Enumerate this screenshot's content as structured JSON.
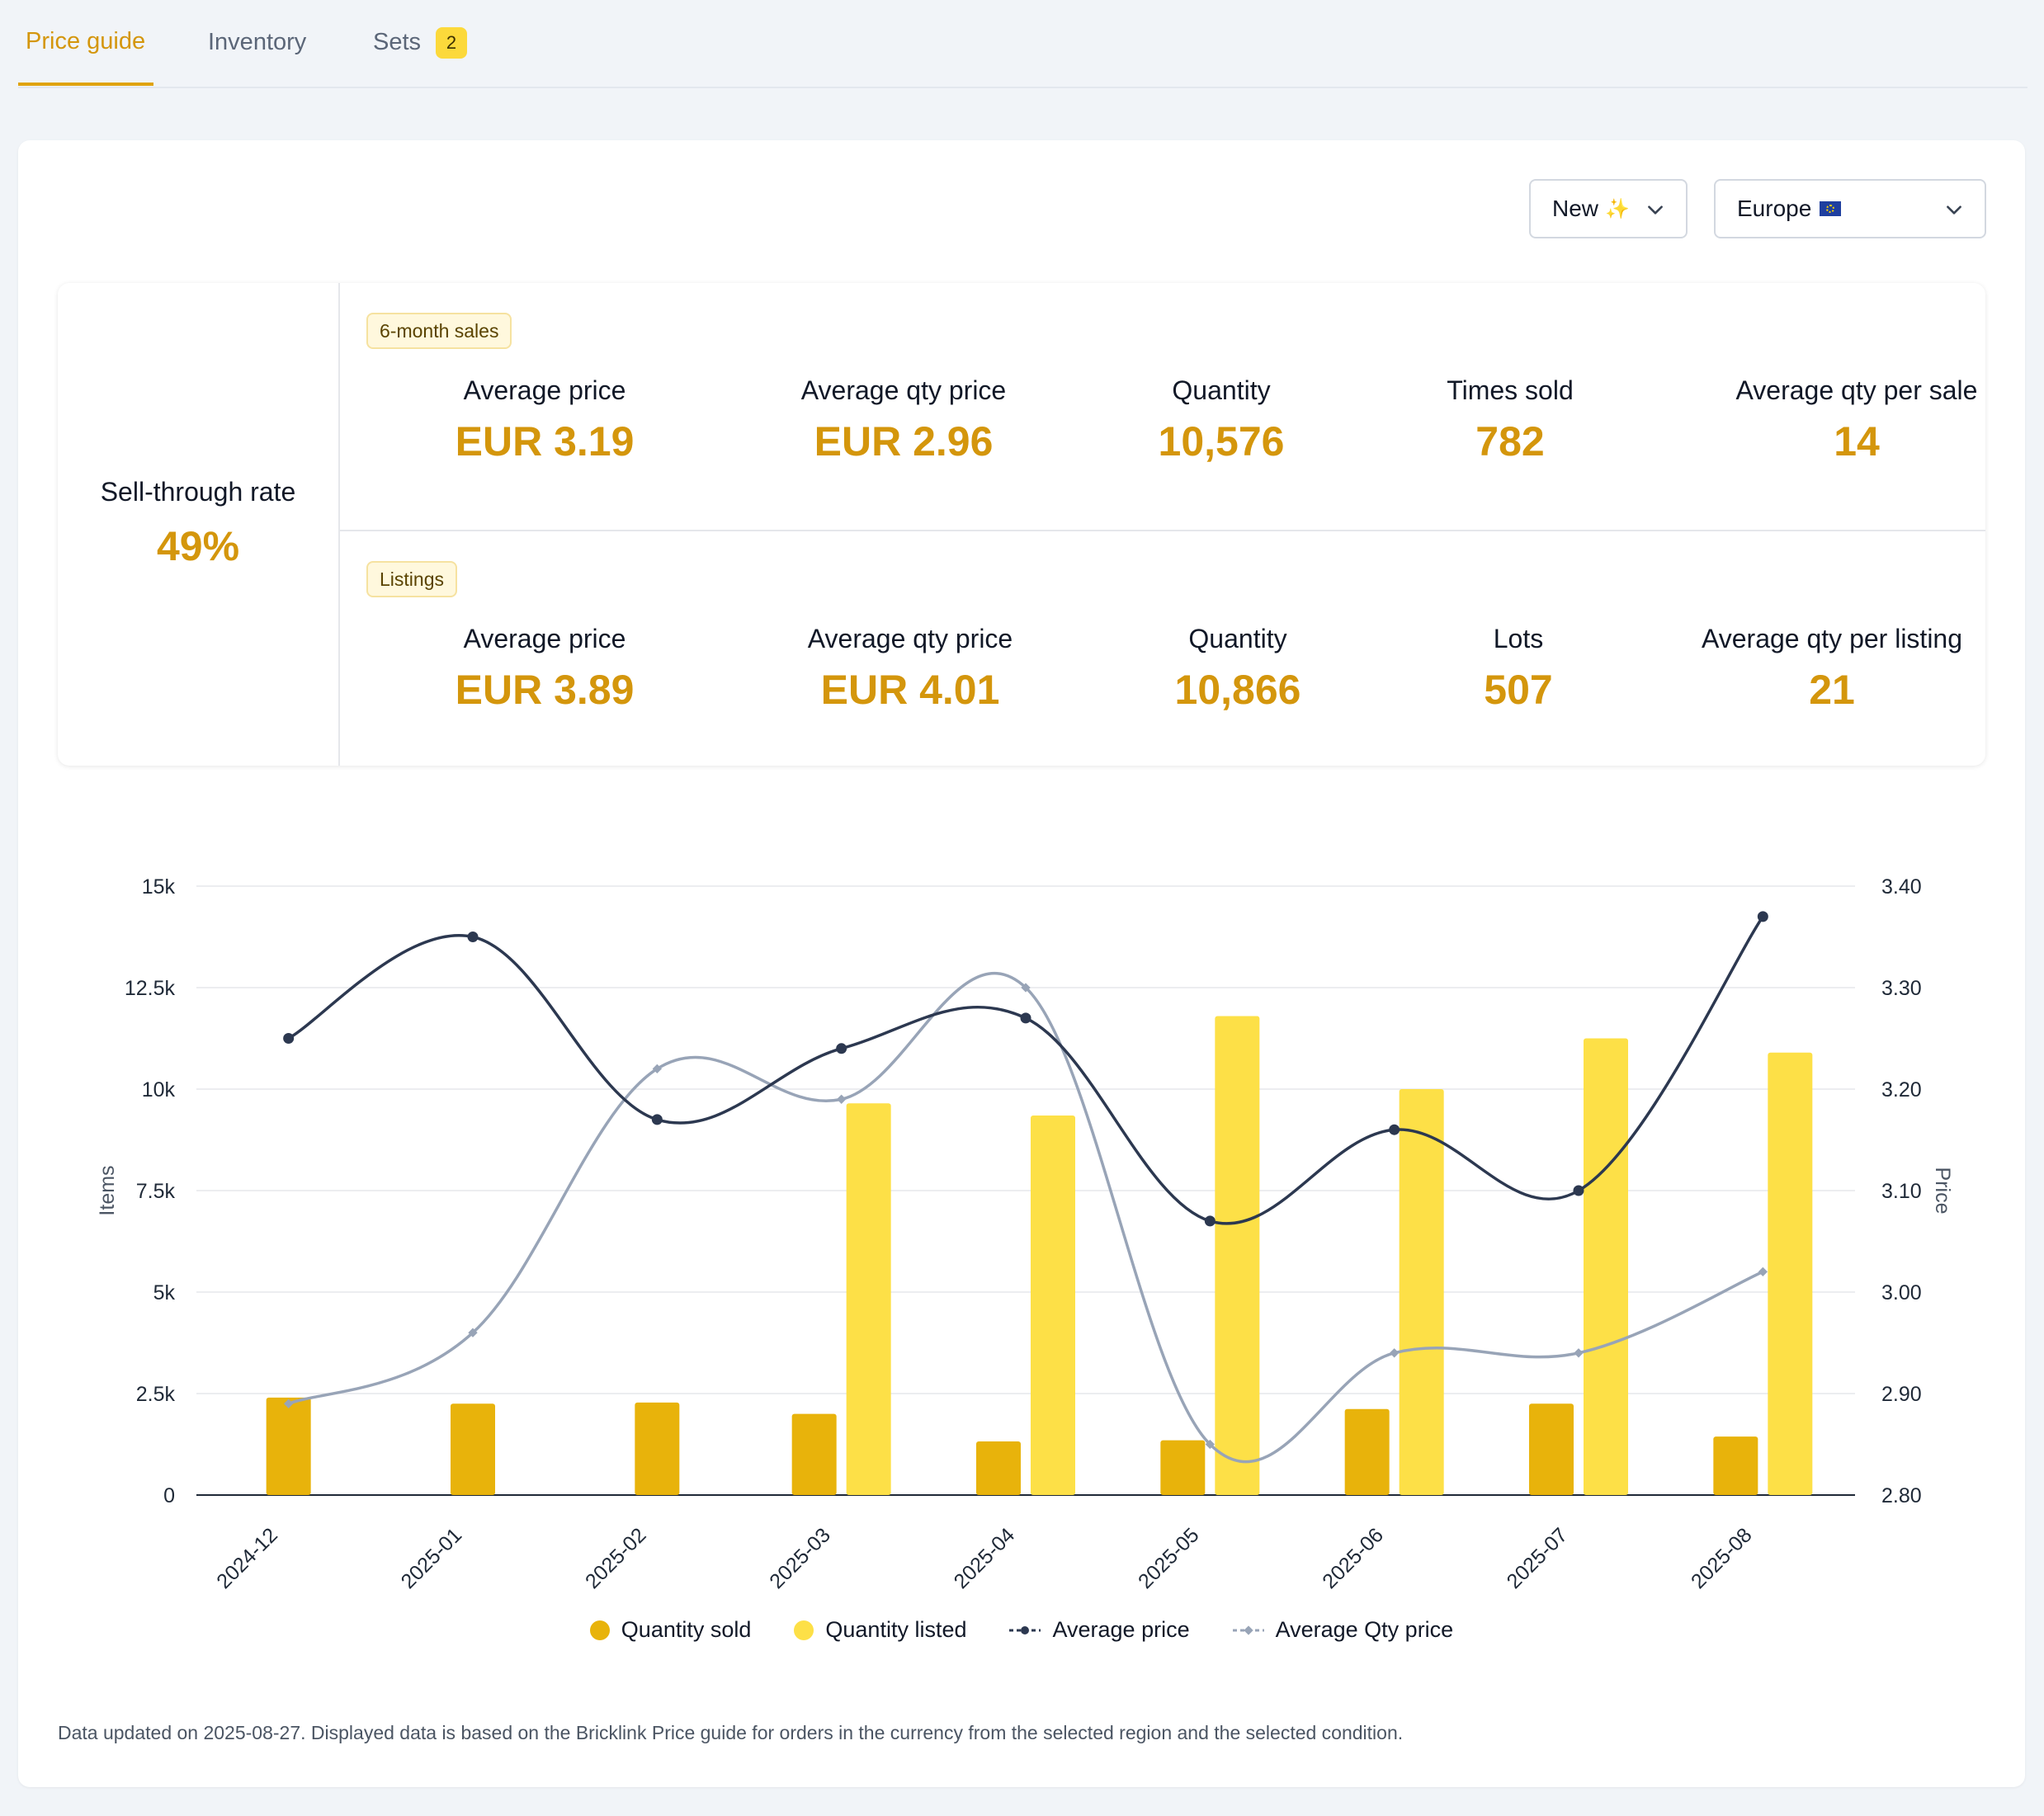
{
  "tabs": [
    {
      "label": "Price guide",
      "active": true
    },
    {
      "label": "Inventory",
      "active": false
    },
    {
      "label": "Sets",
      "active": false,
      "badge": "2"
    }
  ],
  "filters": {
    "condition": {
      "value": "New",
      "icon": "sparkles-icon"
    },
    "region": {
      "value": "Europe",
      "icon": "eu-flag-icon"
    }
  },
  "sell_through": {
    "label": "Sell-through rate",
    "value": "49%"
  },
  "sales": {
    "tag": "6-month sales",
    "metrics": [
      {
        "label": "Average price",
        "value": "EUR 3.19"
      },
      {
        "label": "Average qty price",
        "value": "EUR 2.96"
      },
      {
        "label": "Quantity",
        "value": "10,576"
      },
      {
        "label": "Times sold",
        "value": "782"
      },
      {
        "label": "Average qty per sale",
        "value": "14"
      }
    ]
  },
  "listings": {
    "tag": "Listings",
    "metrics": [
      {
        "label": "Average price",
        "value": "EUR 3.89"
      },
      {
        "label": "Average qty price",
        "value": "EUR 4.01"
      },
      {
        "label": "Quantity",
        "value": "10,866"
      },
      {
        "label": "Lots",
        "value": "507"
      },
      {
        "label": "Average qty per listing",
        "value": "21"
      }
    ]
  },
  "chart_data": {
    "type": "bar",
    "categories": [
      "2024-12",
      "2025-01",
      "2025-02",
      "2025-03",
      "2025-04",
      "2025-05",
      "2025-06",
      "2025-07",
      "2025-08"
    ],
    "ylabel": "Items",
    "y2label": "Price",
    "ylim": [
      0,
      15000
    ],
    "y2lim": [
      2.8,
      3.4
    ],
    "yticks": [
      "0",
      "2.5k",
      "5k",
      "7.5k",
      "10k",
      "12.5k",
      "15k"
    ],
    "y2ticks": [
      "2.80",
      "2.90",
      "3.00",
      "3.10",
      "3.20",
      "3.30",
      "3.40"
    ],
    "series": [
      {
        "name": "Quantity sold",
        "type": "bar",
        "axis": "left",
        "color": "#e8b30b",
        "values": [
          2400,
          2250,
          2280,
          2000,
          1320,
          1350,
          2120,
          2250,
          1440
        ]
      },
      {
        "name": "Quantity listed",
        "type": "bar",
        "axis": "left",
        "color": "#fde047",
        "values": [
          null,
          null,
          null,
          9650,
          9350,
          11800,
          10000,
          11250,
          10900
        ]
      },
      {
        "name": "Average price",
        "type": "line",
        "axis": "right",
        "color": "#2c3850",
        "values": [
          3.25,
          3.35,
          3.17,
          3.24,
          3.27,
          3.07,
          3.16,
          3.1,
          3.37
        ]
      },
      {
        "name": "Average Qty price",
        "type": "line",
        "axis": "right",
        "color": "#98a4b7",
        "values": [
          2.89,
          2.96,
          3.22,
          3.19,
          3.3,
          2.85,
          2.94,
          2.94,
          3.02
        ]
      }
    ],
    "grid": true,
    "legend": "bottom"
  },
  "footnote": "Data updated on 2025-08-27. Displayed data is based on the Bricklink Price guide for orders in the currency from the selected region and the selected condition."
}
